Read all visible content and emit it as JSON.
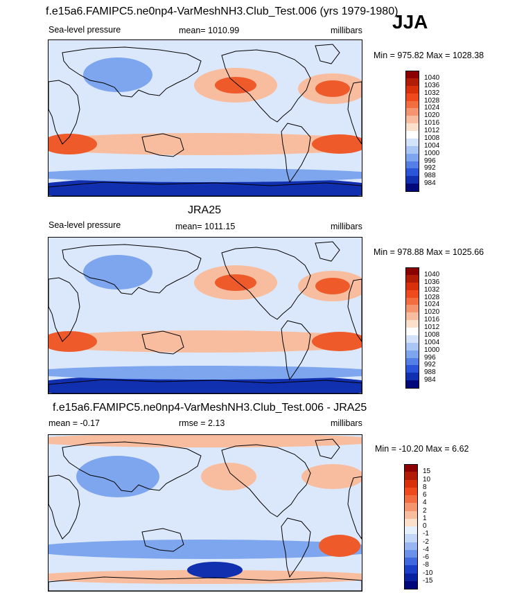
{
  "header": {
    "title": "f.e15a6.FAMIPC5.ne0np4-VarMeshNH3.Club_Test.006 (yrs 1979-1980)",
    "season": "JJA"
  },
  "panels": [
    {
      "title": "",
      "left_label": "Sea-level pressure",
      "center_label": "mean= 1010.99",
      "right_label": "millibars",
      "minmax": "Min = 975.82 Max = 1028.38",
      "colorbar": {
        "labels": [
          "1040",
          "1036",
          "1032",
          "1028",
          "1024",
          "1020",
          "1016",
          "1012",
          "1008",
          "1004",
          "1000",
          "996",
          "992",
          "988",
          "984"
        ],
        "colors": [
          "#8b0000",
          "#b01c05",
          "#d8300b",
          "#ee4a1d",
          "#f26d40",
          "#f59570",
          "#f8bd9e",
          "#fbe0cc",
          "#ffffff",
          "#d3e3fa",
          "#a9c6f4",
          "#7ea6ee",
          "#537fe6",
          "#2a55d8",
          "#1130b0",
          "#00087a"
        ]
      }
    },
    {
      "title": "JRA25",
      "left_label": "Sea-level pressure",
      "center_label": "mean= 1011.15",
      "right_label": "millibars",
      "minmax": "Min = 978.88 Max = 1025.66",
      "colorbar": {
        "labels": [
          "1040",
          "1036",
          "1032",
          "1028",
          "1024",
          "1020",
          "1016",
          "1012",
          "1008",
          "1004",
          "1000",
          "996",
          "992",
          "988",
          "984"
        ],
        "colors": [
          "#8b0000",
          "#b01c05",
          "#d8300b",
          "#ee4a1d",
          "#f26d40",
          "#f59570",
          "#f8bd9e",
          "#fbe0cc",
          "#ffffff",
          "#d3e3fa",
          "#a9c6f4",
          "#7ea6ee",
          "#537fe6",
          "#2a55d8",
          "#1130b0",
          "#00087a"
        ]
      }
    },
    {
      "title": "f.e15a6.FAMIPC5.ne0np4-VarMeshNH3.Club_Test.006 - JRA25",
      "left_label": "mean =  -0.17",
      "center_label": "rmse =   2.13",
      "right_label": "millibars",
      "minmax": "Min = -10.20 Max =   6.62",
      "colorbar": {
        "labels": [
          "15",
          "10",
          "8",
          "6",
          "4",
          "2",
          "1",
          "0",
          "-1",
          "-2",
          "-4",
          "-6",
          "-8",
          "-10",
          "-15"
        ],
        "colors": [
          "#8b0000",
          "#b01c05",
          "#d8300b",
          "#ee4a1d",
          "#f26d40",
          "#f59570",
          "#f8bd9e",
          "#fbe0cc",
          "#e6f0fc",
          "#c2d7f7",
          "#97b6f1",
          "#6b91ea",
          "#4169df",
          "#1c3fc8",
          "#0a22a0",
          "#00087a"
        ]
      }
    }
  ],
  "colors": {
    "high": "#ee5a2a",
    "mid_high": "#f8bd9e",
    "neutral": "#dbe8fb",
    "low": "#7ea6ee",
    "very_low": "#1130b0",
    "land_outline": "#000000"
  }
}
